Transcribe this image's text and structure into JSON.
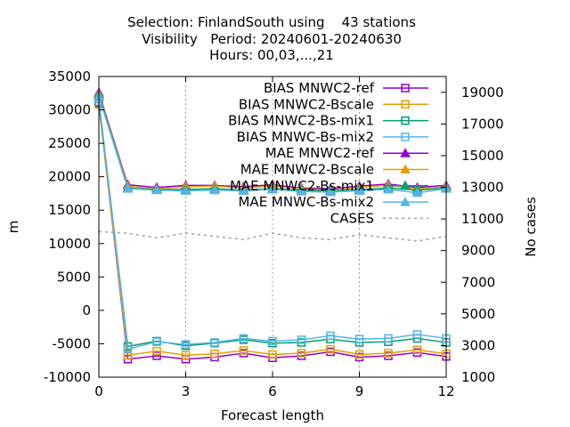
{
  "title_lines": [
    "Selection: FinlandSouth using    43 stations",
    "Visibility   Period: 20240601-20240630",
    "Hours: 00,03,...,21"
  ],
  "chart_data": {
    "type": "line",
    "xlabel": "Forecast length",
    "ylabel": "m",
    "y2label": "No cases",
    "xlim": [
      0,
      12
    ],
    "ylim": [
      -10000,
      35000
    ],
    "y2lim": [
      1000,
      20000
    ],
    "xticks": [
      0,
      3,
      6,
      9,
      12
    ],
    "yticks": [
      -10000,
      -5000,
      0,
      5000,
      10000,
      15000,
      20000,
      25000,
      30000,
      35000
    ],
    "y2ticks": [
      1000,
      3000,
      5000,
      7000,
      9000,
      11000,
      13000,
      15000,
      17000,
      19000
    ],
    "grid": "vertical at x ticks",
    "legend_position": "top-right",
    "x": [
      0,
      1,
      2,
      3,
      4,
      5,
      6,
      7,
      8,
      9,
      10,
      11,
      12
    ],
    "series": [
      {
        "name": "BIAS MNWC2-ref",
        "color": "#9400d3",
        "marker": "open-square",
        "line": "solid",
        "axis": "y",
        "values": [
          31000,
          -7300,
          -6800,
          -7300,
          -7000,
          -6400,
          -7100,
          -6800,
          -6200,
          -7000,
          -6800,
          -6300,
          -6900
        ]
      },
      {
        "name": "BIAS MNWC2-Bscale",
        "color": "#e69f00",
        "marker": "open-square",
        "line": "solid",
        "axis": "y",
        "values": [
          30800,
          -6700,
          -6100,
          -6700,
          -6500,
          -6000,
          -6600,
          -6400,
          -5800,
          -6600,
          -6400,
          -5900,
          -6500
        ]
      },
      {
        "name": "BIAS MNWC2-Bs-mix1",
        "color": "#009e73",
        "marker": "open-square",
        "line": "solid",
        "axis": "y",
        "values": [
          31200,
          -5400,
          -4600,
          -5300,
          -4900,
          -4400,
          -4900,
          -4800,
          -4300,
          -4800,
          -4700,
          -4200,
          -4800
        ]
      },
      {
        "name": "BIAS MNWC-Bs-mix2",
        "color": "#56b4e9",
        "marker": "open-square",
        "line": "solid",
        "axis": "y",
        "values": [
          31600,
          -5800,
          -4700,
          -5100,
          -4800,
          -4200,
          -4600,
          -4400,
          -3800,
          -4300,
          -4200,
          -3600,
          -4200
        ]
      },
      {
        "name": "MAE MNWC2-ref",
        "color": "#9400d3",
        "marker": "filled-triangle",
        "line": "solid",
        "axis": "y",
        "values": [
          32600,
          18800,
          18400,
          18700,
          18700,
          18500,
          18800,
          18300,
          18200,
          18600,
          18900,
          18400,
          18700
        ]
      },
      {
        "name": "MAE MNWC2-Bscale",
        "color": "#e69f00",
        "marker": "filled-triangle",
        "line": "solid",
        "axis": "y",
        "values": [
          32400,
          18600,
          18200,
          18500,
          18600,
          18300,
          18600,
          18200,
          18000,
          18400,
          18700,
          18200,
          18500
        ]
      },
      {
        "name": "MAE MNWC2-Bs-mix1",
        "color": "#009e73",
        "marker": "filled-triangle",
        "line": "solid",
        "axis": "y",
        "values": [
          32200,
          18300,
          18100,
          18100,
          18200,
          18000,
          18200,
          18000,
          17900,
          18100,
          18300,
          18000,
          18300
        ]
      },
      {
        "name": "MAE MNWC-Bs-mix2",
        "color": "#56b4e9",
        "marker": "filled-triangle",
        "line": "solid",
        "axis": "y",
        "values": [
          32000,
          18200,
          18000,
          17900,
          18000,
          17900,
          18100,
          17800,
          17700,
          17900,
          18100,
          17600,
          18200
        ]
      },
      {
        "name": "CASES",
        "color": "#a0a0a0",
        "marker": "none",
        "line": "dashed",
        "axis": "y2",
        "values": [
          10200,
          10100,
          9800,
          10100,
          9900,
          9700,
          10100,
          9800,
          9700,
          10000,
          9800,
          9600,
          9900
        ]
      }
    ]
  }
}
